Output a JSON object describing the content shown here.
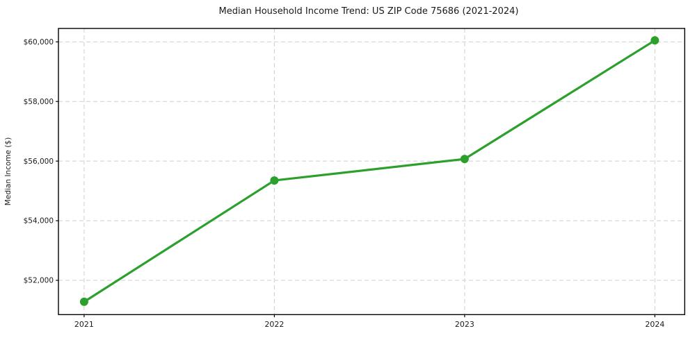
{
  "page": {
    "background": "#ffffff"
  },
  "chart_data": {
    "type": "line",
    "title": "Median Household Income Trend: US ZIP Code 75686 (2021-2024)",
    "xlabel": "",
    "ylabel": "Median Income ($)",
    "x": [
      2021,
      2022,
      2023,
      2024
    ],
    "x_tick_labels": [
      "2021",
      "2022",
      "2023",
      "2024"
    ],
    "values": [
      51280,
      55350,
      56070,
      60050
    ],
    "y_ticks": [
      52000,
      54000,
      56000,
      58000,
      60000
    ],
    "y_tick_labels": [
      "$52,000",
      "$54,000",
      "$56,000",
      "$58,000",
      "$60,000"
    ],
    "ylim": [
      50850,
      60450
    ],
    "xlim": [
      2020.865,
      2024.157
    ],
    "grid": true,
    "grid_style": "dashed",
    "legend_position": "none",
    "line_color": "#2ca02c",
    "marker": "circle",
    "grid_color": "#cfcfcf",
    "axis_color": "#000000",
    "text_color": "#1a1a1a"
  }
}
